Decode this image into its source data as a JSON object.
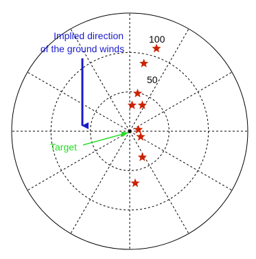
{
  "chart_data": {
    "type": "scatter",
    "coordinate_system": "polar",
    "r_max": 150,
    "rings": [
      50,
      100
    ],
    "ring_labels": [
      "50",
      "100"
    ],
    "spokes_deg": [
      0,
      30,
      60,
      90,
      120,
      150,
      180,
      210,
      240,
      270,
      300,
      330
    ],
    "grid": true,
    "marker": "star",
    "marker_color": "#cc2200",
    "points": [
      {
        "x": 34,
        "y": 105
      },
      {
        "x": 18,
        "y": 86
      },
      {
        "x": 10,
        "y": 48
      },
      {
        "x": 3,
        "y": 33
      },
      {
        "x": 16,
        "y": 33
      },
      {
        "x": 11,
        "y": 2
      },
      {
        "x": 14,
        "y": -7
      },
      {
        "x": 16,
        "y": -33
      },
      {
        "x": 7,
        "y": -66
      }
    ],
    "annotations": [
      {
        "text": "Implied direction\nof the ground winds",
        "color": "#1a1acc",
        "arrow": "down",
        "arrow_color": "#1a1acc"
      },
      {
        "text": "Target",
        "color": "#22dd22",
        "arrow": "to-center",
        "arrow_color": "#22dd22"
      }
    ]
  }
}
